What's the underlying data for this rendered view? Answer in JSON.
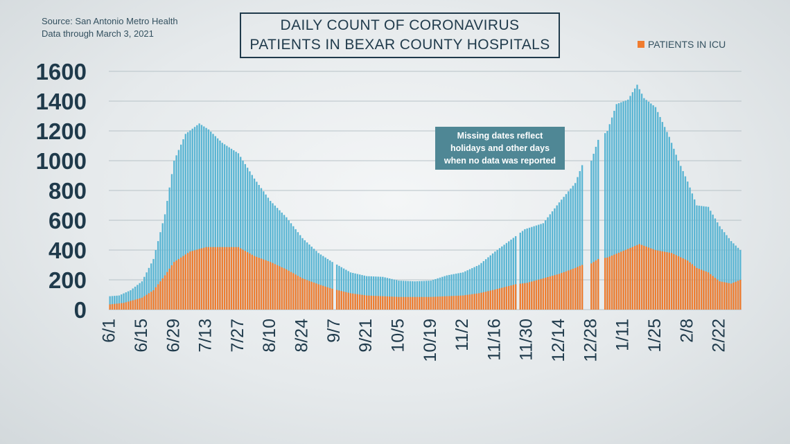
{
  "source_lines": [
    "Source: San Antonio Metro Health",
    "Data through March 3, 2021"
  ],
  "title_lines": [
    "DAILY COUNT OF CORONAVIRUS",
    "PATIENTS IN BEXAR COUNTY HOSPITALS"
  ],
  "note_lines": [
    "Missing dates reflect",
    "holidays and other days",
    "when no data was reported"
  ],
  "colors": {
    "total": "#5ab5d3",
    "icu": "#f07c2f",
    "grid": "#b7c2c7",
    "text": "#1f3a4b"
  },
  "chart_data": {
    "type": "bar",
    "title": "DAILY COUNT OF CORONAVIRUS PATIENTS IN BEXAR COUNTY HOSPITALS",
    "xlabel": "",
    "ylabel": "",
    "ylim": [
      0,
      1600
    ],
    "yticks": [
      0,
      200,
      400,
      600,
      800,
      1000,
      1200,
      1400,
      1600
    ],
    "x_start": "2020-06-01",
    "x_end": "2021-03-03",
    "xticks": [
      "6/1",
      "6/15",
      "6/29",
      "7/13",
      "7/27",
      "8/10",
      "8/24",
      "9/7",
      "9/21",
      "10/5",
      "10/19",
      "11/2",
      "11/16",
      "11/30",
      "12/14",
      "12/28",
      "1/11",
      "1/25",
      "2/8",
      "2/22"
    ],
    "legend": "top-right",
    "grid": true,
    "missing_dates": [
      "2020-09-07",
      "2020-11-26",
      "2020-12-25",
      "2020-12-26",
      "2020-12-27",
      "2021-01-01",
      "2021-01-02"
    ],
    "series": [
      {
        "name": "",
        "role": "total",
        "anchors": [
          [
            "2020-06-01",
            90
          ],
          [
            "2020-06-05",
            95
          ],
          [
            "2020-06-10",
            130
          ],
          [
            "2020-06-15",
            190
          ],
          [
            "2020-06-20",
            340
          ],
          [
            "2020-06-25",
            640
          ],
          [
            "2020-06-29",
            1000
          ],
          [
            "2020-07-04",
            1180
          ],
          [
            "2020-07-10",
            1250
          ],
          [
            "2020-07-14",
            1210
          ],
          [
            "2020-07-20",
            1120
          ],
          [
            "2020-07-27",
            1050
          ],
          [
            "2020-08-03",
            880
          ],
          [
            "2020-08-10",
            730
          ],
          [
            "2020-08-17",
            620
          ],
          [
            "2020-08-24",
            480
          ],
          [
            "2020-08-31",
            380
          ],
          [
            "2020-09-06",
            320
          ],
          [
            "2020-09-14",
            250
          ],
          [
            "2020-09-21",
            225
          ],
          [
            "2020-09-28",
            220
          ],
          [
            "2020-10-05",
            195
          ],
          [
            "2020-10-12",
            190
          ],
          [
            "2020-10-19",
            195
          ],
          [
            "2020-10-26",
            230
          ],
          [
            "2020-11-02",
            250
          ],
          [
            "2020-11-09",
            300
          ],
          [
            "2020-11-16",
            390
          ],
          [
            "2020-11-23",
            470
          ],
          [
            "2020-11-29",
            540
          ],
          [
            "2020-12-07",
            580
          ],
          [
            "2020-12-14",
            720
          ],
          [
            "2020-12-21",
            850
          ],
          [
            "2020-12-24",
            970
          ],
          [
            "2020-12-28",
            1000
          ],
          [
            "2020-12-31",
            1140
          ],
          [
            "2021-01-04",
            1200
          ],
          [
            "2021-01-08",
            1380
          ],
          [
            "2021-01-13",
            1410
          ],
          [
            "2021-01-17",
            1510
          ],
          [
            "2021-01-20",
            1420
          ],
          [
            "2021-01-25",
            1360
          ],
          [
            "2021-01-31",
            1160
          ],
          [
            "2021-02-04",
            1000
          ],
          [
            "2021-02-08",
            860
          ],
          [
            "2021-02-12",
            700
          ],
          [
            "2021-02-17",
            690
          ],
          [
            "2021-02-22",
            560
          ],
          [
            "2021-02-27",
            460
          ],
          [
            "2021-03-03",
            400
          ]
        ]
      },
      {
        "name": "PATIENTS IN ICU",
        "role": "icu",
        "anchors": [
          [
            "2020-06-01",
            35
          ],
          [
            "2020-06-07",
            45
          ],
          [
            "2020-06-15",
            80
          ],
          [
            "2020-06-20",
            130
          ],
          [
            "2020-06-25",
            230
          ],
          [
            "2020-06-29",
            320
          ],
          [
            "2020-07-06",
            390
          ],
          [
            "2020-07-13",
            420
          ],
          [
            "2020-07-27",
            420
          ],
          [
            "2020-08-03",
            360
          ],
          [
            "2020-08-10",
            320
          ],
          [
            "2020-08-17",
            270
          ],
          [
            "2020-08-24",
            210
          ],
          [
            "2020-08-31",
            170
          ],
          [
            "2020-09-06",
            140
          ],
          [
            "2020-09-14",
            110
          ],
          [
            "2020-09-21",
            95
          ],
          [
            "2020-10-05",
            85
          ],
          [
            "2020-10-19",
            85
          ],
          [
            "2020-11-02",
            95
          ],
          [
            "2020-11-09",
            110
          ],
          [
            "2020-11-16",
            135
          ],
          [
            "2020-11-25",
            170
          ],
          [
            "2020-11-30",
            180
          ],
          [
            "2020-12-07",
            210
          ],
          [
            "2020-12-14",
            240
          ],
          [
            "2020-12-21",
            280
          ],
          [
            "2020-12-24",
            300
          ],
          [
            "2020-12-28",
            310
          ],
          [
            "2020-12-31",
            340
          ],
          [
            "2021-01-04",
            350
          ],
          [
            "2021-01-11",
            395
          ],
          [
            "2021-01-18",
            440
          ],
          [
            "2021-01-25",
            400
          ],
          [
            "2021-02-01",
            380
          ],
          [
            "2021-02-08",
            330
          ],
          [
            "2021-02-12",
            280
          ],
          [
            "2021-02-17",
            250
          ],
          [
            "2021-02-22",
            190
          ],
          [
            "2021-02-27",
            175
          ],
          [
            "2021-03-03",
            200
          ]
        ]
      }
    ]
  }
}
